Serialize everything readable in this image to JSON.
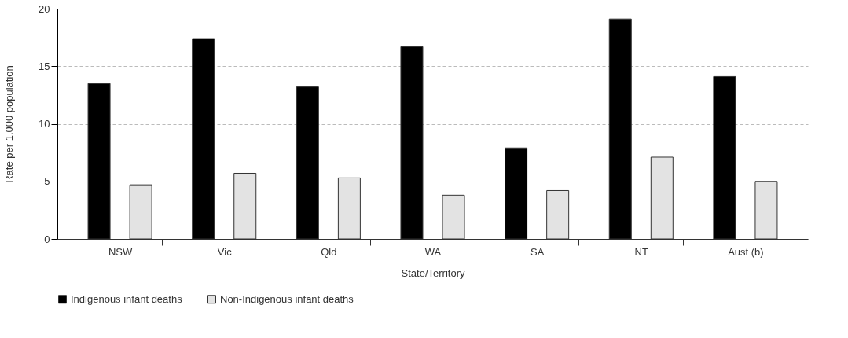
{
  "chart_data": {
    "type": "bar",
    "xlabel": "State/Territory",
    "ylabel": "Rate per 1,000 population",
    "categories": [
      "NSW",
      "Vic",
      "Qld",
      "WA",
      "SA",
      "NT",
      "Aust (b)"
    ],
    "series": [
      {
        "name": "Indigenous infant deaths",
        "color": "#000000",
        "values": [
          13.5,
          17.4,
          13.2,
          16.7,
          7.9,
          19.1,
          14.1
        ]
      },
      {
        "name": "Non-Indigenous infant deaths",
        "color": "#e3e3e3",
        "values": [
          4.7,
          5.7,
          5.3,
          3.8,
          4.2,
          7.1,
          5.0
        ]
      }
    ],
    "ylim": [
      0,
      20
    ],
    "yticks": [
      0,
      5,
      10,
      15,
      20
    ],
    "grid": "y",
    "legend": "bottom"
  }
}
